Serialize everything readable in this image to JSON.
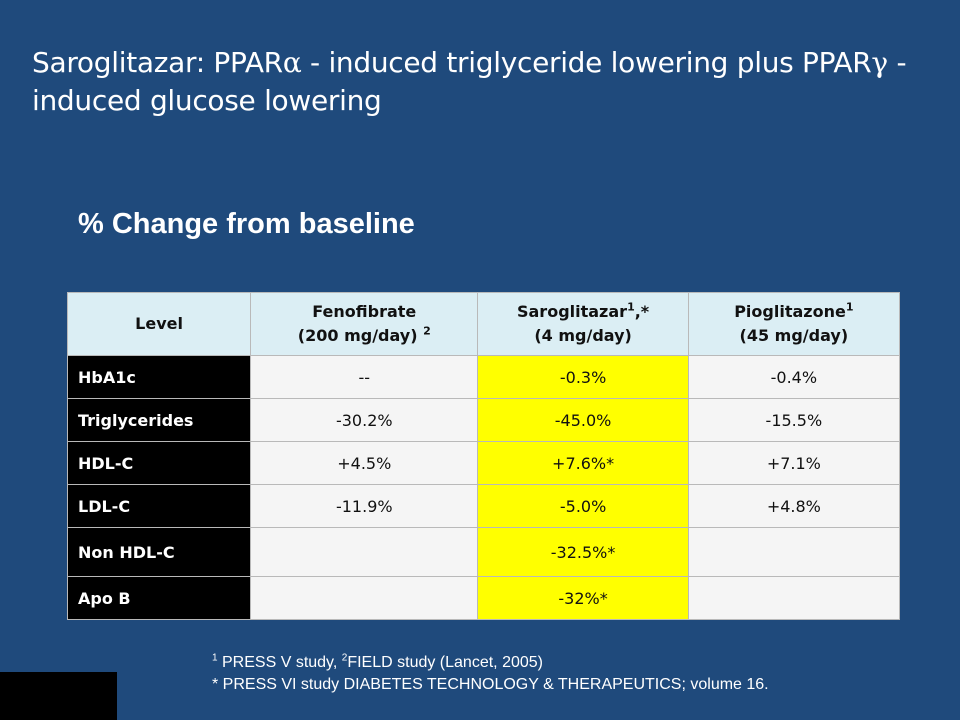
{
  "slide": {
    "title_part1": "Saroglitazar:   PPAR",
    "title_alpha": "α",
    "title_part2": " - induced triglyceride lowering plus PPAR",
    "title_gamma": "γ",
    "title_part3": "  - induced glucose lowering",
    "subtitle": "% Change from baseline"
  },
  "table": {
    "headers": {
      "level": "Level",
      "fenofibrate_name": "Fenofibrate",
      "fenofibrate_dose": "(200 mg/day) ",
      "fenofibrate_sup": "2",
      "saroglitazar_name": "Saroglitazar",
      "saroglitazar_sup": "1",
      "saroglitazar_suffix": ",*",
      "saroglitazar_dose": "(4 mg/day)",
      "pioglitazone_name": "Pioglitazone",
      "pioglitazone_sup": "1",
      "pioglitazone_dose": "(45 mg/day)"
    },
    "rows": [
      {
        "level": "HbA1c",
        "fenofibrate": "--",
        "saroglitazar": "-0.3%",
        "pioglitazone": "-0.4%"
      },
      {
        "level": "Triglycerides",
        "fenofibrate": "-30.2%",
        "saroglitazar": "-45.0%",
        "pioglitazone": "-15.5%"
      },
      {
        "level": "HDL-C",
        "fenofibrate": "+4.5%",
        "saroglitazar": "+7.6%*",
        "pioglitazone": "+7.1%"
      },
      {
        "level": "LDL-C",
        "fenofibrate": "-11.9%",
        "saroglitazar": "-5.0%",
        "pioglitazone": "+4.8%"
      },
      {
        "level": "Non HDL-C",
        "fenofibrate": "",
        "saroglitazar": "-32.5%*",
        "pioglitazone": ""
      },
      {
        "level": "Apo B",
        "fenofibrate": "",
        "saroglitazar": "-32%*",
        "pioglitazone": ""
      }
    ]
  },
  "footnotes": {
    "sup1": "1",
    "line1_a": " PRESS V study, ",
    "sup2": "2",
    "line1_b": "FIELD study (Lancet, 2005)",
    "line2": "* PRESS VI study DIABETES TECHNOLOGY & THERAPEUTICS; volume 16."
  },
  "colors": {
    "background": "#1f4a7c",
    "header_fill": "#dbeef4",
    "highlight": "#ffff00",
    "label_fill": "#000000"
  }
}
